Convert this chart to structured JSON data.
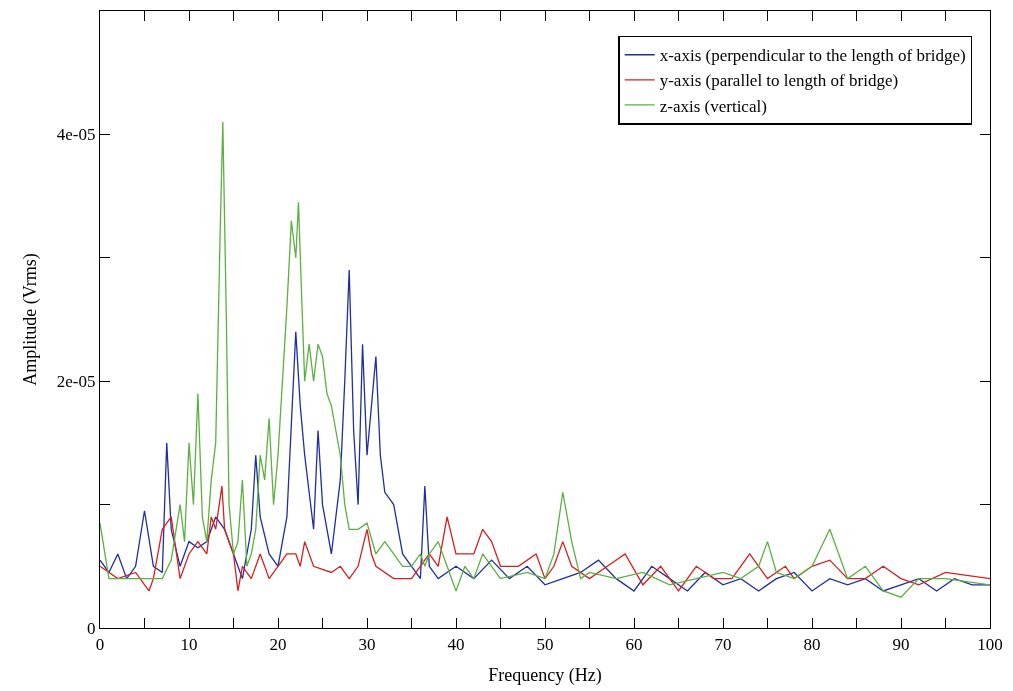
{
  "chart_data": {
    "type": "line",
    "xlabel": "Frequency (Hz)",
    "ylabel": "Amplitude (Vrms)",
    "xlim": [
      0,
      100
    ],
    "ylim": [
      0,
      5e-05
    ],
    "xticks": [
      0,
      {
        "value": 5,
        "label": null
      },
      10,
      {
        "value": 15,
        "label": null
      },
      20,
      {
        "value": 25,
        "label": null
      },
      30,
      {
        "value": 35,
        "label": null
      },
      40,
      {
        "value": 45,
        "label": null
      },
      50,
      {
        "value": 55,
        "label": null
      },
      60,
      {
        "value": 65,
        "label": null
      },
      70,
      {
        "value": 75,
        "label": null
      },
      80,
      {
        "value": 85,
        "label": null
      },
      90,
      {
        "value": 95,
        "label": null
      },
      100
    ],
    "yticks": [
      0,
      {
        "value": 1e-05,
        "label": null
      },
      {
        "value": 2e-05,
        "label": "2e-05"
      },
      {
        "value": 3e-05,
        "label": null
      },
      {
        "value": 4e-05,
        "label": "4e-05"
      }
    ],
    "legend": "top right",
    "marker": "none",
    "line_style": "solid",
    "series": [
      {
        "name": "x-axis (perpendicular to the length of bridge)",
        "color": "#1f2ea0",
        "x": [
          0,
          1,
          2,
          3,
          4,
          5,
          6,
          7,
          7.5,
          8,
          9,
          10,
          11,
          12,
          13,
          14,
          15,
          16,
          17,
          17.5,
          18,
          19,
          20,
          21,
          22,
          22.5,
          23,
          24,
          24.5,
          25,
          26,
          27,
          27.5,
          28,
          28.5,
          29,
          29.5,
          30,
          30.5,
          31,
          31.5,
          32,
          33,
          34,
          35,
          36,
          36.5,
          37,
          38,
          40,
          42,
          44,
          46,
          48,
          50,
          52,
          54,
          56,
          58,
          60,
          62,
          64,
          66,
          68,
          70,
          72,
          74,
          76,
          78,
          80,
          82,
          84,
          86,
          88,
          90,
          92,
          94,
          96,
          98,
          100
        ],
        "values": [
          5.5e-06,
          4.5e-06,
          6e-06,
          4e-06,
          5e-06,
          9.5e-06,
          5e-06,
          4.5e-06,
          1.5e-05,
          8e-06,
          5e-06,
          7e-06,
          6.5e-06,
          7e-06,
          9e-06,
          8e-06,
          6e-06,
          4e-06,
          8e-06,
          1.4e-05,
          9e-06,
          6e-06,
          5e-06,
          9e-06,
          2.4e-05,
          1.8e-05,
          1.4e-05,
          8e-06,
          1.6e-05,
          1e-05,
          6e-06,
          1.2e-05,
          2e-05,
          2.9e-05,
          1.6e-05,
          1e-05,
          2.3e-05,
          1.4e-05,
          1.8e-05,
          2.2e-05,
          1.4e-05,
          1.1e-05,
          1e-05,
          6e-06,
          5e-06,
          4e-06,
          1.15e-05,
          5e-06,
          4e-06,
          5e-06,
          4e-06,
          5.5e-06,
          4e-06,
          5e-06,
          3.5e-06,
          4e-06,
          4.5e-06,
          5.5e-06,
          4e-06,
          3e-06,
          5e-06,
          4e-06,
          3e-06,
          4.5e-06,
          3.5e-06,
          4e-06,
          3e-06,
          4e-06,
          4.5e-06,
          3e-06,
          4e-06,
          3.5e-06,
          4e-06,
          3e-06,
          3.5e-06,
          4e-06,
          3e-06,
          4e-06,
          3.5e-06,
          3.5e-06
        ]
      },
      {
        "name": "y-axis (parallel to length of bridge)",
        "color": "#d42020",
        "x": [
          0,
          2,
          4,
          5.5,
          6,
          7,
          8,
          9,
          10,
          11,
          12,
          12.5,
          13,
          13.7,
          14,
          15,
          15.5,
          16,
          17,
          18,
          19,
          20,
          21,
          22,
          22.5,
          23,
          24,
          26,
          27,
          28,
          29,
          30,
          30.5,
          31,
          33,
          35,
          37,
          38,
          39,
          40,
          42,
          43,
          44,
          45,
          47,
          49,
          50,
          51,
          52,
          53,
          55,
          57,
          59,
          61,
          63,
          65,
          67,
          69,
          71,
          73,
          75,
          77,
          78,
          80,
          82,
          84,
          86,
          88,
          90,
          92,
          95,
          100
        ],
        "values": [
          5e-06,
          4e-06,
          4.5e-06,
          3e-06,
          4e-06,
          8e-06,
          9e-06,
          4e-06,
          6e-06,
          7e-06,
          6e-06,
          9e-06,
          8e-06,
          1.15e-05,
          8e-06,
          6e-06,
          3e-06,
          5e-06,
          4e-06,
          6e-06,
          4e-06,
          5e-06,
          6e-06,
          6e-06,
          5e-06,
          7e-06,
          5e-06,
          4.5e-06,
          5e-06,
          4e-06,
          5e-06,
          8e-06,
          6e-06,
          5e-06,
          4e-06,
          4e-06,
          6e-06,
          5e-06,
          9e-06,
          6e-06,
          6e-06,
          8e-06,
          7e-06,
          5e-06,
          5e-06,
          6e-06,
          4e-06,
          5e-06,
          7e-06,
          5e-06,
          4e-06,
          5e-06,
          6e-06,
          3.5e-06,
          5e-06,
          3e-06,
          5e-06,
          4e-06,
          4e-06,
          6e-06,
          4e-06,
          5e-06,
          4e-06,
          5e-06,
          5.5e-06,
          4e-06,
          4e-06,
          5e-06,
          4e-06,
          3.5e-06,
          4.5e-06,
          4e-06
        ]
      },
      {
        "name": "z-axis (vertical)",
        "color": "#5cb040",
        "x": [
          0,
          1,
          3,
          5,
          7,
          8,
          9,
          9.5,
          10,
          10.5,
          11,
          11.5,
          12,
          12.5,
          13,
          13.5,
          13.8,
          14.2,
          14.5,
          15,
          15.5,
          16,
          16.5,
          17,
          17.5,
          18,
          18.5,
          19,
          19.5,
          20,
          21,
          21.5,
          22,
          22.3,
          22.7,
          23,
          23.5,
          24,
          24.5,
          25,
          25.5,
          26,
          27,
          27.5,
          28,
          29,
          30,
          31,
          32,
          33,
          34,
          35,
          36,
          36.5,
          37,
          38,
          39,
          40,
          41,
          42,
          43,
          44,
          45,
          48,
          50,
          51,
          52,
          53,
          54,
          55,
          58,
          61,
          64,
          67,
          70,
          72,
          74,
          75,
          76,
          78,
          80,
          82,
          83,
          84,
          86,
          88,
          90,
          92,
          95,
          100
        ],
        "values": [
          8.5e-06,
          4e-06,
          4e-06,
          4e-06,
          4e-06,
          5.5e-06,
          1e-05,
          7e-06,
          1.5e-05,
          1e-05,
          1.9e-05,
          9e-06,
          7e-06,
          1.2e-05,
          1.5e-05,
          3.2e-05,
          4.1e-05,
          2.5e-05,
          1e-05,
          6e-06,
          7e-06,
          1.2e-05,
          5e-06,
          6e-06,
          8e-06,
          1.4e-05,
          1.2e-05,
          1.7e-05,
          1e-05,
          1.4e-05,
          2.6e-05,
          3.3e-05,
          3e-05,
          3.45e-05,
          2.6e-05,
          2e-05,
          2.3e-05,
          2e-05,
          2.3e-05,
          2.2e-05,
          1.9e-05,
          1.8e-05,
          1.4e-05,
          1e-05,
          8e-06,
          8e-06,
          8.5e-06,
          6e-06,
          7e-06,
          6e-06,
          5e-06,
          5e-06,
          6e-06,
          5e-06,
          6e-06,
          7e-06,
          5e-06,
          3e-06,
          5e-06,
          4e-06,
          6e-06,
          5e-06,
          4e-06,
          4.5e-06,
          4e-06,
          6e-06,
          1.1e-05,
          7e-06,
          4e-06,
          4.5e-06,
          4e-06,
          4.5e-06,
          3.5e-06,
          4e-06,
          4.5e-06,
          4e-06,
          5e-06,
          7e-06,
          4.5e-06,
          4e-06,
          5e-06,
          8e-06,
          6e-06,
          4e-06,
          5e-06,
          3e-06,
          2.5e-06,
          4e-06,
          4e-06,
          3.5e-06
        ]
      }
    ]
  }
}
